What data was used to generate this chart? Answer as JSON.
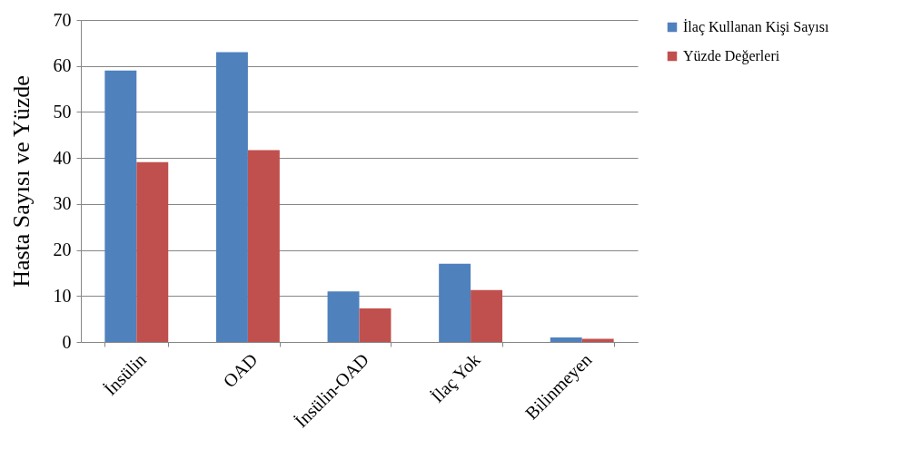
{
  "chart_data": {
    "type": "bar",
    "ylabel": "Hasta Sayısı ve Yüzde",
    "categories": [
      "İnsülin",
      "OAD",
      "İnsülin-OAD",
      "İlaç Yok",
      "Bilinmeyen"
    ],
    "series": [
      {
        "name": "İlaç Kullanan Kişi Sayısı",
        "color": "#4f81bd",
        "values": [
          59,
          63,
          11,
          17,
          1
        ]
      },
      {
        "name": "Yüzde Değerleri",
        "color": "#c0504d",
        "values": [
          39.1,
          41.7,
          7.3,
          11.3,
          0.7
        ]
      }
    ],
    "ylim": [
      0,
      70
    ],
    "yticks": [
      0,
      10,
      20,
      30,
      40,
      50,
      60,
      70
    ],
    "grid": "y",
    "legend": "right"
  }
}
